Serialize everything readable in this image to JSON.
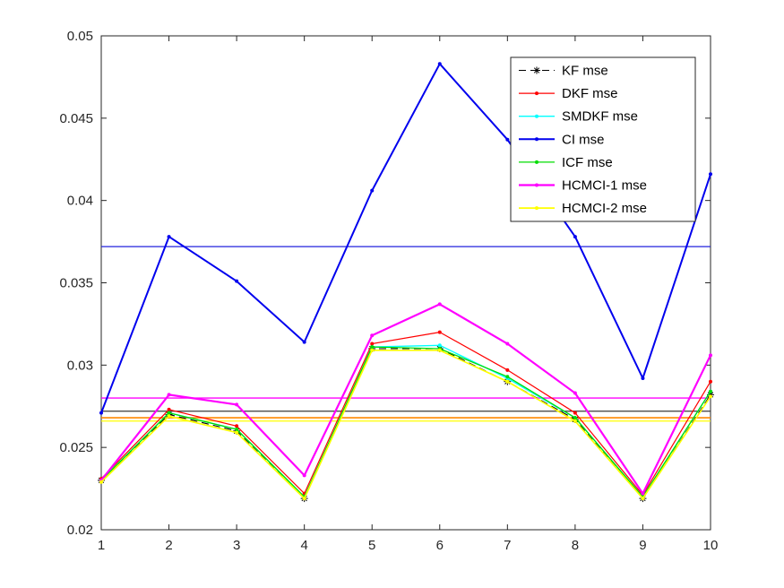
{
  "figure": {
    "background": "#ffffff",
    "axes_color": "#262626",
    "tick_label_color": "#262626"
  },
  "chart_data": {
    "type": "line",
    "title": "",
    "xlabel": "",
    "ylabel": "",
    "grid": false,
    "legend_position": "upper-right-inside",
    "xlim": [
      1,
      10
    ],
    "ylim": [
      0.02,
      0.05
    ],
    "x": [
      1,
      2,
      3,
      4,
      5,
      6,
      7,
      8,
      9,
      10
    ],
    "x_tick_labels": [
      "1",
      "2",
      "3",
      "4",
      "5",
      "6",
      "7",
      "8",
      "9",
      "10"
    ],
    "y_ticks": [
      0.02,
      0.025,
      0.03,
      0.035,
      0.04,
      0.045,
      0.05
    ],
    "y_tick_labels": [
      "0.02",
      "0.025",
      "0.03",
      "0.035",
      "0.04",
      "0.045",
      "0.05"
    ],
    "series": [
      {
        "name": "KF mse",
        "color": "#000000",
        "style": "dashed",
        "marker": "asterisk",
        "width": 1.1,
        "values": [
          0.023,
          0.027,
          0.026,
          0.0219,
          0.031,
          0.031,
          0.029,
          0.0267,
          0.0219,
          0.0282
        ]
      },
      {
        "name": "DKF mse",
        "color": "#FF0000",
        "style": "solid",
        "marker": "dot",
        "width": 1.2,
        "values": [
          0.0231,
          0.0273,
          0.0263,
          0.0222,
          0.0313,
          0.032,
          0.0297,
          0.0271,
          0.0221,
          0.029
        ]
      },
      {
        "name": "SMDKF mse",
        "color": "#00FFFF",
        "style": "solid",
        "marker": "dot",
        "width": 1.4,
        "values": [
          0.023,
          0.0271,
          0.0261,
          0.022,
          0.0311,
          0.0312,
          0.0292,
          0.0268,
          0.022,
          0.0284
        ]
      },
      {
        "name": "CI mse",
        "color": "#0000EE",
        "style": "solid",
        "marker": "dot",
        "width": 2,
        "values": [
          0.0271,
          0.0378,
          0.0351,
          0.0314,
          0.0406,
          0.0483,
          0.0437,
          0.0378,
          0.0292,
          0.0416
        ]
      },
      {
        "name": "ICF mse",
        "color": "#00DD00",
        "style": "solid",
        "marker": "dot",
        "width": 1.3,
        "values": [
          0.023,
          0.0271,
          0.0261,
          0.022,
          0.0311,
          0.031,
          0.0293,
          0.0268,
          0.022,
          0.0284
        ]
      },
      {
        "name": "HCMCI-1 mse",
        "color": "#FF00FF",
        "style": "solid",
        "marker": "dot",
        "width": 2.2,
        "values": [
          0.023,
          0.0282,
          0.0276,
          0.0233,
          0.0318,
          0.0337,
          0.0313,
          0.0283,
          0.0222,
          0.0306
        ]
      },
      {
        "name": "HCMCI-2 mse",
        "color": "#FFFF00",
        "style": "solid",
        "marker": "dot",
        "width": 1.7,
        "values": [
          0.0229,
          0.0269,
          0.0259,
          0.0219,
          0.0309,
          0.0309,
          0.029,
          0.0266,
          0.0219,
          0.0281
        ]
      }
    ],
    "hlines": [
      {
        "value": 0.0372,
        "color": "#2222DD",
        "width": 1.2
      },
      {
        "value": 0.028,
        "color": "#FF00FF",
        "width": 1.3
      },
      {
        "value": 0.0272,
        "color": "#3A3A3A",
        "width": 1.3
      },
      {
        "value": 0.0268,
        "color": "#FF8800",
        "width": 1.6
      },
      {
        "value": 0.0266,
        "color": "#FFFF00",
        "width": 1.3
      }
    ]
  }
}
